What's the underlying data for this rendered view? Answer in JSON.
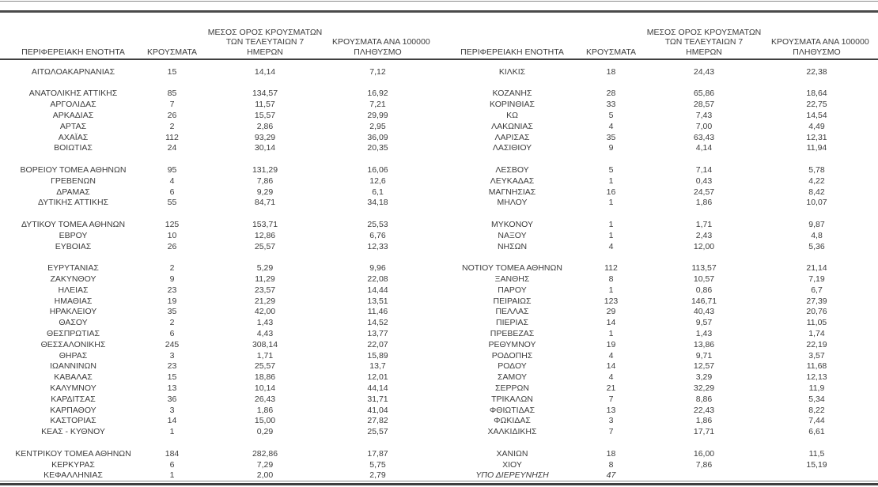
{
  "colors": {
    "text": "#3c3c3c",
    "rule_light_gray": "#8a8a8a",
    "rule_dark_gray": "#4a4a4a"
  },
  "table": {
    "headers": {
      "region": "ΠΕΡΙΦΕΡΕΙΑΚΗ ΕΝΟΤΗΤΑ",
      "cases": "ΚΡΟΥΣΜΑΤΑ",
      "avg7_lines": [
        "ΜΕΣΟΣ ΟΡΟΣ ΚΡΟΥΣΜΑΤΩΝ",
        "ΤΩΝ ΤΕΛΕΥΤΑΙΩΝ 7",
        "ΗΜΕΡΩΝ"
      ],
      "per100k_lines": [
        "ΚΡΟΥΣΜΑΤΑ ΑΝΑ 100000",
        "ΠΛΗΘΥΣΜΟ"
      ]
    },
    "left_rows": [
      {
        "region": "ΑΙΤΩΛΟΑΚΑΡΝΑΝΙΑΣ",
        "cases": "15",
        "avg7": "14,14",
        "per100k": "7,12"
      },
      {
        "gap": true
      },
      {
        "region": "ΑΝΑΤΟΛΙΚΗΣ ΑΤΤΙΚΗΣ",
        "cases": "85",
        "avg7": "134,57",
        "per100k": "16,92"
      },
      {
        "region": "ΑΡΓΟΛΙΔΑΣ",
        "cases": "7",
        "avg7": "11,57",
        "per100k": "7,21"
      },
      {
        "region": "ΑΡΚΑΔΙΑΣ",
        "cases": "26",
        "avg7": "15,57",
        "per100k": "29,99"
      },
      {
        "region": "ΑΡΤΑΣ",
        "cases": "2",
        "avg7": "2,86",
        "per100k": "2,95"
      },
      {
        "region": "ΑΧΑΪΑΣ",
        "cases": "112",
        "avg7": "93,29",
        "per100k": "36,09"
      },
      {
        "region": "ΒΟΙΩΤΙΑΣ",
        "cases": "24",
        "avg7": "30,14",
        "per100k": "20,35"
      },
      {
        "gap": true
      },
      {
        "region": "ΒΟΡΕΙΟΥ ΤΟΜΕΑ ΑΘΗΝΩΝ",
        "cases": "95",
        "avg7": "131,29",
        "per100k": "16,06"
      },
      {
        "region": "ΓΡΕΒΕΝΩΝ",
        "cases": "4",
        "avg7": "7,86",
        "per100k": "12,6"
      },
      {
        "region": "ΔΡΑΜΑΣ",
        "cases": "6",
        "avg7": "9,29",
        "per100k": "6,1"
      },
      {
        "region": "ΔΥΤΙΚΗΣ ΑΤΤΙΚΗΣ",
        "cases": "55",
        "avg7": "84,71",
        "per100k": "34,18"
      },
      {
        "gap": true
      },
      {
        "region": "ΔΥΤΙΚΟΥ ΤΟΜΕΑ ΑΘΗΝΩΝ",
        "cases": "125",
        "avg7": "153,71",
        "per100k": "25,53"
      },
      {
        "region": "ΕΒΡΟΥ",
        "cases": "10",
        "avg7": "12,86",
        "per100k": "6,76"
      },
      {
        "region": "ΕΥΒΟΙΑΣ",
        "cases": "26",
        "avg7": "25,57",
        "per100k": "12,33"
      },
      {
        "gap": true
      },
      {
        "region": "ΕΥΡΥΤΑΝΙΑΣ",
        "cases": "2",
        "avg7": "5,29",
        "per100k": "9,96"
      },
      {
        "region": "ΖΑΚΥΝΘΟΥ",
        "cases": "9",
        "avg7": "11,29",
        "per100k": "22,08"
      },
      {
        "region": "ΗΛΕΙΑΣ",
        "cases": "23",
        "avg7": "23,57",
        "per100k": "14,44"
      },
      {
        "region": "ΗΜΑΘΙΑΣ",
        "cases": "19",
        "avg7": "21,29",
        "per100k": "13,51"
      },
      {
        "region": "ΗΡΑΚΛΕΙΟΥ",
        "cases": "35",
        "avg7": "42,00",
        "per100k": "11,46"
      },
      {
        "region": "ΘΑΣΟΥ",
        "cases": "2",
        "avg7": "1,43",
        "per100k": "14,52"
      },
      {
        "region": "ΘΕΣΠΡΩΤΙΑΣ",
        "cases": "6",
        "avg7": "4,43",
        "per100k": "13,77"
      },
      {
        "region": "ΘΕΣΣΑΛΟΝΙΚΗΣ",
        "cases": "245",
        "avg7": "308,14",
        "per100k": "22,07"
      },
      {
        "region": "ΘΗΡΑΣ",
        "cases": "3",
        "avg7": "1,71",
        "per100k": "15,89"
      },
      {
        "region": "ΙΩΑΝΝΙΝΩΝ",
        "cases": "23",
        "avg7": "25,57",
        "per100k": "13,7"
      },
      {
        "region": "ΚΑΒΑΛΑΣ",
        "cases": "15",
        "avg7": "18,86",
        "per100k": "12,01"
      },
      {
        "region": "ΚΑΛΥΜΝΟΥ",
        "cases": "13",
        "avg7": "10,14",
        "per100k": "44,14"
      },
      {
        "region": "ΚΑΡΔΙΤΣΑΣ",
        "cases": "36",
        "avg7": "26,43",
        "per100k": "31,71"
      },
      {
        "region": "ΚΑΡΠΑΘΟΥ",
        "cases": "3",
        "avg7": "1,86",
        "per100k": "41,04"
      },
      {
        "region": "ΚΑΣΤΟΡΙΑΣ",
        "cases": "14",
        "avg7": "15,00",
        "per100k": "27,82"
      },
      {
        "region": "ΚΕΑΣ - ΚΥΘΝΟΥ",
        "cases": "1",
        "avg7": "0,29",
        "per100k": "25,57"
      },
      {
        "gap": true
      },
      {
        "region": "ΚΕΝΤΡΙΚΟΥ ΤΟΜΕΑ ΑΘΗΝΩΝ",
        "cases": "184",
        "avg7": "282,86",
        "per100k": "17,87"
      },
      {
        "region": "ΚΕΡΚΥΡΑΣ",
        "cases": "6",
        "avg7": "7,29",
        "per100k": "5,75"
      },
      {
        "region": "ΚΕΦΑΛΛΗΝΙΑΣ",
        "cases": "1",
        "avg7": "2,00",
        "per100k": "2,79"
      }
    ],
    "right_rows": [
      {
        "region": "ΚΙΛΚΙΣ",
        "cases": "18",
        "avg7": "24,43",
        "per100k": "22,38"
      },
      {
        "gap": true
      },
      {
        "region": "ΚΟΖΑΝΗΣ",
        "cases": "28",
        "avg7": "65,86",
        "per100k": "18,64"
      },
      {
        "region": "ΚΟΡΙΝΘΙΑΣ",
        "cases": "33",
        "avg7": "28,57",
        "per100k": "22,75"
      },
      {
        "region": "ΚΩ",
        "cases": "5",
        "avg7": "7,43",
        "per100k": "14,54"
      },
      {
        "region": "ΛΑΚΩΝΙΑΣ",
        "cases": "4",
        "avg7": "7,00",
        "per100k": "4,49"
      },
      {
        "region": "ΛΑΡΙΣΑΣ",
        "cases": "35",
        "avg7": "63,43",
        "per100k": "12,31"
      },
      {
        "region": "ΛΑΣΙΘΙΟΥ",
        "cases": "9",
        "avg7": "4,14",
        "per100k": "11,94"
      },
      {
        "gap": true
      },
      {
        "region": "ΛΕΣΒΟΥ",
        "cases": "5",
        "avg7": "7,14",
        "per100k": "5,78"
      },
      {
        "region": "ΛΕΥΚΑΔΑΣ",
        "cases": "1",
        "avg7": "0,43",
        "per100k": "4,22"
      },
      {
        "region": "ΜΑΓΝΗΣΙΑΣ",
        "cases": "16",
        "avg7": "24,57",
        "per100k": "8,42"
      },
      {
        "region": "ΜΗΛΟΥ",
        "cases": "1",
        "avg7": "1,86",
        "per100k": "10,07"
      },
      {
        "gap": true
      },
      {
        "region": "ΜΥΚΟΝΟΥ",
        "cases": "1",
        "avg7": "1,71",
        "per100k": "9,87"
      },
      {
        "region": "ΝΑΞΟΥ",
        "cases": "1",
        "avg7": "2,43",
        "per100k": "4,8"
      },
      {
        "region": "ΝΗΣΩΝ",
        "cases": "4",
        "avg7": "12,00",
        "per100k": "5,36"
      },
      {
        "gap": true
      },
      {
        "region": "ΝΟΤΙΟΥ ΤΟΜΕΑ ΑΘΗΝΩΝ",
        "cases": "112",
        "avg7": "113,57",
        "per100k": "21,14"
      },
      {
        "region": "ΞΑΝΘΗΣ",
        "cases": "8",
        "avg7": "10,57",
        "per100k": "7,19"
      },
      {
        "region": "ΠΑΡΟΥ",
        "cases": "1",
        "avg7": "0,86",
        "per100k": "6,7"
      },
      {
        "region": "ΠΕΙΡΑΙΩΣ",
        "cases": "123",
        "avg7": "146,71",
        "per100k": "27,39"
      },
      {
        "region": "ΠΕΛΛΑΣ",
        "cases": "29",
        "avg7": "40,43",
        "per100k": "20,76"
      },
      {
        "region": "ΠΙΕΡΙΑΣ",
        "cases": "14",
        "avg7": "9,57",
        "per100k": "11,05"
      },
      {
        "region": "ΠΡΕΒΕΖΑΣ",
        "cases": "1",
        "avg7": "1,43",
        "per100k": "1,74"
      },
      {
        "region": "ΡΕΘΥΜΝΟΥ",
        "cases": "19",
        "avg7": "13,86",
        "per100k": "22,19"
      },
      {
        "region": "ΡΟΔΟΠΗΣ",
        "cases": "4",
        "avg7": "9,71",
        "per100k": "3,57"
      },
      {
        "region": "ΡΟΔΟΥ",
        "cases": "14",
        "avg7": "12,57",
        "per100k": "11,68"
      },
      {
        "region": "ΣΑΜΟΥ",
        "cases": "4",
        "avg7": "3,29",
        "per100k": "12,13"
      },
      {
        "region": "ΣΕΡΡΩΝ",
        "cases": "21",
        "avg7": "32,29",
        "per100k": "11,9"
      },
      {
        "region": "ΤΡΙΚΑΛΩΝ",
        "cases": "7",
        "avg7": "8,86",
        "per100k": "5,34"
      },
      {
        "region": "ΦΘΙΩΤΙΔΑΣ",
        "cases": "13",
        "avg7": "22,43",
        "per100k": "8,22"
      },
      {
        "region": "ΦΩΚΙΔΑΣ",
        "cases": "3",
        "avg7": "1,86",
        "per100k": "7,44"
      },
      {
        "region": "ΧΑΛΚΙΔΙΚΗΣ",
        "cases": "7",
        "avg7": "17,71",
        "per100k": "6,61"
      },
      {
        "gap": true
      },
      {
        "region": "ΧΑΝΙΩΝ",
        "cases": "18",
        "avg7": "16,00",
        "per100k": "11,5"
      },
      {
        "region": "ΧΙΟΥ",
        "cases": "8",
        "avg7": "7,86",
        "per100k": "15,19"
      },
      {
        "region": "ΥΠΟ ΔΙΕΡΕΥΝΗΣΗ",
        "cases": "47",
        "avg7": "",
        "per100k": "",
        "italic": true
      }
    ]
  }
}
